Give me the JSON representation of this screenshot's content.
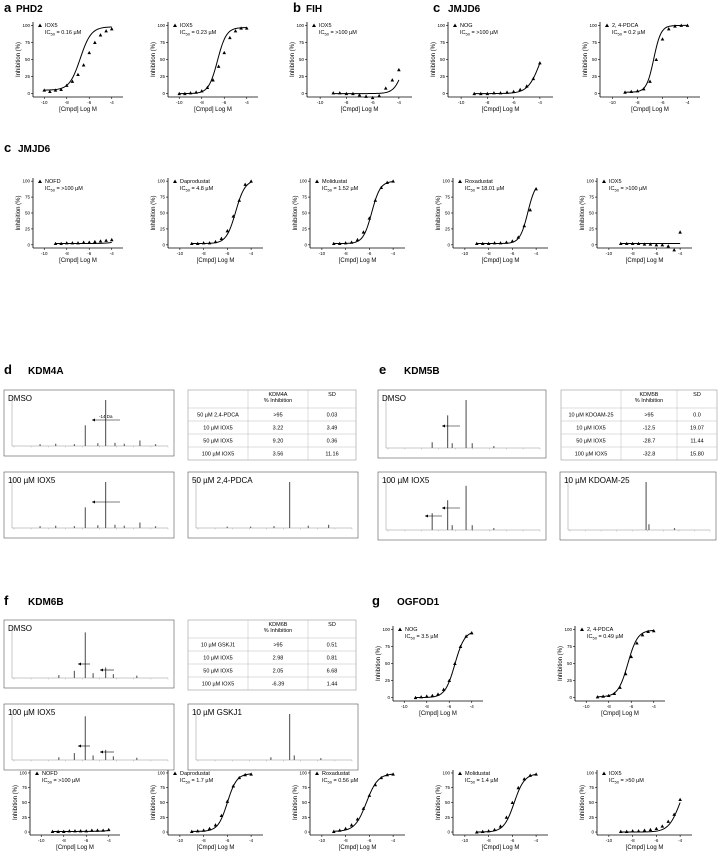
{
  "panel_labels": {
    "a": "a",
    "b": "b",
    "c1": "c",
    "c2": "c",
    "d": "d",
    "e": "e",
    "f": "f",
    "g": "g"
  },
  "titles": {
    "a": "PHD2",
    "b": "FIH",
    "c1": "JMJD6",
    "c2": "JMJD6",
    "d": "KDM4A",
    "e": "KDM5B",
    "f": "KDM6B",
    "g": "OGFOD1"
  },
  "axis_text": {
    "xlabel": "[Cmpd] Log M",
    "ylabel": "Inhibition (%)"
  },
  "chart_data": [
    {
      "id": "a1",
      "type": "scatter",
      "legend_label": "IOX5",
      "ic50": "IC50 = 0.16 µM",
      "xlim": [
        -11,
        -3
      ],
      "ylim": [
        -5,
        105
      ],
      "x": [
        -10,
        -9.5,
        -9,
        -8.5,
        -8,
        -7.5,
        -7,
        -6.5,
        -6,
        -5.5,
        -5,
        -4.5,
        -4
      ],
      "y": [
        5,
        3,
        5,
        6,
        12,
        18,
        28,
        42,
        60,
        75,
        86,
        92,
        95
      ],
      "fit": {
        "bottom": 5,
        "top": 98,
        "logec50": -6.8,
        "hill": 0.9
      }
    },
    {
      "id": "a2",
      "type": "scatter",
      "legend_label": "IOX5",
      "ic50": "IC50 = 0.23 µM",
      "xlim": [
        -11,
        -3
      ],
      "ylim": [
        -5,
        105
      ],
      "x": [
        -10,
        -9.5,
        -9,
        -8.5,
        -8,
        -7.5,
        -7,
        -6.5,
        -6,
        -5.5,
        -5,
        -4.5,
        -4
      ],
      "y": [
        0,
        0,
        1,
        2,
        4,
        9,
        20,
        40,
        60,
        82,
        92,
        96,
        96
      ],
      "fit": {
        "bottom": 0,
        "top": 97,
        "logec50": -6.6,
        "hill": 1.1
      }
    },
    {
      "id": "b1",
      "type": "scatter",
      "legend_label": "IOX5",
      "ic50": "IC50 = >100 µM",
      "xlim": [
        -11,
        -3
      ],
      "ylim": [
        -5,
        105
      ],
      "x": [
        -9,
        -8.5,
        -8,
        -7.5,
        -7,
        -6.5,
        -6,
        -5.5,
        -5,
        -4.5,
        -4
      ],
      "y": [
        1,
        1,
        0,
        0,
        -2,
        -4,
        -6,
        -3,
        8,
        20,
        35
      ],
      "fit": {
        "bottom": 0,
        "top": 100,
        "logec50": -3.5,
        "hill": 1.2
      }
    },
    {
      "id": "c1",
      "type": "scatter",
      "legend_label": "NOG",
      "ic50": "IC50 = >100 µM",
      "xlim": [
        -11,
        -3
      ],
      "ylim": [
        -5,
        105
      ],
      "x": [
        -9,
        -8.5,
        -8,
        -7.5,
        -7,
        -6.5,
        -6,
        -5.5,
        -5,
        -4.5,
        -4
      ],
      "y": [
        0,
        0,
        0,
        1,
        1,
        2,
        3,
        6,
        11,
        22,
        45
      ],
      "fit": {
        "bottom": 0,
        "top": 100,
        "logec50": -3.9,
        "hill": 0.9
      }
    },
    {
      "id": "c2",
      "type": "scatter",
      "legend_label": "2, 4-PDCA",
      "ic50": "IC50 = 0.2 µM",
      "xlim": [
        -11,
        -3
      ],
      "ylim": [
        -5,
        105
      ],
      "x": [
        -9,
        -8.5,
        -8,
        -7.5,
        -7,
        -6.5,
        -6,
        -5.5,
        -5,
        -4.5,
        -4
      ],
      "y": [
        2,
        3,
        4,
        7,
        18,
        50,
        80,
        95,
        99,
        100,
        100
      ],
      "fit": {
        "bottom": 2,
        "top": 100,
        "logec50": -6.7,
        "hill": 1.5
      }
    },
    {
      "id": "c3",
      "type": "scatter",
      "legend_label": "NOFD",
      "ic50": "IC50 = >100 µM",
      "xlim": [
        -11,
        -3
      ],
      "ylim": [
        -5,
        105
      ],
      "x": [
        -9,
        -8.5,
        -8,
        -7.5,
        -7,
        -6.5,
        -6,
        -5.5,
        -5,
        -4.5,
        -4
      ],
      "y": [
        2,
        2,
        3,
        3,
        3,
        4,
        4,
        5,
        6,
        7,
        8
      ],
      "fit": {
        "bottom": 2,
        "top": 100,
        "logec50": -1.5,
        "hill": 0.7
      }
    },
    {
      "id": "c4",
      "type": "scatter",
      "legend_label": "Daprodustat",
      "ic50": "IC50 = 4.8 µM",
      "xlim": [
        -11,
        -3
      ],
      "ylim": [
        -5,
        105
      ],
      "x": [
        -9,
        -8.5,
        -8,
        -7.5,
        -7,
        -6.5,
        -6,
        -5.5,
        -5,
        -4.5,
        -4
      ],
      "y": [
        2,
        2,
        3,
        3,
        5,
        10,
        22,
        45,
        70,
        95,
        100
      ],
      "fit": {
        "bottom": 2,
        "top": 102,
        "logec50": -5.3,
        "hill": 1.1
      }
    },
    {
      "id": "c5",
      "type": "scatter",
      "legend_label": "Molidustat",
      "ic50": "IC50 = 1.52 µM",
      "xlim": [
        -11,
        -3
      ],
      "ylim": [
        -5,
        105
      ],
      "x": [
        -9,
        -8.5,
        -8,
        -7.5,
        -7,
        -6.5,
        -6,
        -5.5,
        -5,
        -4.5,
        -4
      ],
      "y": [
        2,
        2,
        3,
        4,
        8,
        20,
        42,
        70,
        90,
        98,
        100
      ],
      "fit": {
        "bottom": 2,
        "top": 100,
        "logec50": -5.8,
        "hill": 1.2
      }
    },
    {
      "id": "c6",
      "type": "scatter",
      "legend_label": "Roxadustat",
      "ic50": "IC50 = 18.01 µM",
      "xlim": [
        -11,
        -3
      ],
      "ylim": [
        -5,
        105
      ],
      "x": [
        -9,
        -8.5,
        -8,
        -7.5,
        -7,
        -6.5,
        -6,
        -5.5,
        -5,
        -4.5,
        -4
      ],
      "y": [
        2,
        2,
        2,
        3,
        3,
        4,
        6,
        12,
        30,
        55,
        88
      ],
      "fit": {
        "bottom": 2,
        "top": 100,
        "logec50": -4.7,
        "hill": 1.3
      }
    },
    {
      "id": "c7",
      "type": "scatter",
      "legend_label": "IOX5",
      "ic50": "IC50 = >100 µM",
      "xlim": [
        -11,
        -3
      ],
      "ylim": [
        -5,
        105
      ],
      "x": [
        -9,
        -8.5,
        -8,
        -7.5,
        -7,
        -6.5,
        -6,
        -5.5,
        -5,
        -4.5,
        -4
      ],
      "y": [
        2,
        2,
        2,
        2,
        1,
        1,
        0,
        0,
        -2,
        -8,
        20
      ],
      "fit": {
        "bottom": 2,
        "top": 100,
        "logec50": -2.0,
        "hill": 1.5
      }
    },
    {
      "id": "g1",
      "type": "scatter",
      "legend_label": "NOG",
      "ic50": "IC50 = 3.5 µM",
      "xlim": [
        -11,
        -3
      ],
      "ylim": [
        -5,
        105
      ],
      "x": [
        -9,
        -8.5,
        -8,
        -7.5,
        -7,
        -6.5,
        -6,
        -5.5,
        -5,
        -4.5,
        -4
      ],
      "y": [
        0,
        1,
        2,
        3,
        5,
        12,
        25,
        50,
        75,
        90,
        95
      ],
      "fit": {
        "bottom": 0,
        "top": 98,
        "logec50": -5.5,
        "hill": 1.0
      }
    },
    {
      "id": "g2",
      "type": "scatter",
      "legend_label": "2, 4-PDCA",
      "ic50": "IC50 = 0.49 µM",
      "xlim": [
        -11,
        -3
      ],
      "ylim": [
        -5,
        105
      ],
      "x": [
        -9,
        -8.5,
        -8,
        -7.5,
        -7,
        -6.5,
        -6,
        -5.5,
        -5,
        -4.5,
        -4
      ],
      "y": [
        1,
        2,
        3,
        6,
        15,
        35,
        60,
        80,
        92,
        97,
        98
      ],
      "fit": {
        "bottom": 1,
        "top": 99,
        "logec50": -6.3,
        "hill": 1.0
      }
    },
    {
      "id": "g3",
      "type": "scatter",
      "legend_label": "NOFD",
      "ic50": "IC50 = >100 µM",
      "xlim": [
        -11,
        -3
      ],
      "ylim": [
        -5,
        105
      ],
      "x": [
        -9,
        -8.5,
        -8,
        -7.5,
        -7,
        -6.5,
        -6,
        -5.5,
        -5,
        -4.5,
        -4
      ],
      "y": [
        1,
        1,
        1,
        2,
        2,
        2,
        2,
        3,
        3,
        3,
        4
      ],
      "fit": {
        "bottom": 1,
        "top": 100,
        "logec50": -1.0,
        "hill": 0.6
      }
    },
    {
      "id": "g4",
      "type": "scatter",
      "legend_label": "Daprodustat",
      "ic50": "IC50 = 1.7 µM",
      "xlim": [
        -11,
        -3
      ],
      "ylim": [
        -5,
        105
      ],
      "x": [
        -9,
        -8.5,
        -8,
        -7.5,
        -7,
        -6.5,
        -6,
        -5.5,
        -5,
        -4.5,
        -4
      ],
      "y": [
        1,
        2,
        3,
        6,
        12,
        28,
        52,
        78,
        92,
        97,
        98
      ],
      "fit": {
        "bottom": 1,
        "top": 99,
        "logec50": -6.0,
        "hill": 1.1
      }
    },
    {
      "id": "g5",
      "type": "scatter",
      "legend_label": "Roxadustat",
      "ic50": "IC50 = 0.56 µM",
      "xlim": [
        -11,
        -3
      ],
      "ylim": [
        -5,
        105
      ],
      "x": [
        -9,
        -8.5,
        -8,
        -7.5,
        -7,
        -6.5,
        -6,
        -5.5,
        -5,
        -4.5,
        -4
      ],
      "y": [
        1,
        3,
        6,
        12,
        22,
        40,
        62,
        80,
        92,
        97,
        98
      ],
      "fit": {
        "bottom": 1,
        "top": 99,
        "logec50": -6.25,
        "hill": 0.9
      }
    },
    {
      "id": "g6",
      "type": "scatter",
      "legend_label": "Molidustat",
      "ic50": "IC50 = 1.4 µM",
      "xlim": [
        -11,
        -3
      ],
      "ylim": [
        -5,
        105
      ],
      "x": [
        -9,
        -8.5,
        -8,
        -7.5,
        -7,
        -6.5,
        -6,
        -5.5,
        -5,
        -4.5,
        -4
      ],
      "y": [
        0,
        1,
        2,
        4,
        10,
        25,
        50,
        75,
        90,
        96,
        98
      ],
      "fit": {
        "bottom": 0,
        "top": 99,
        "logec50": -5.85,
        "hill": 1.0
      }
    },
    {
      "id": "g7",
      "type": "scatter",
      "legend_label": "IOX5",
      "ic50": "IC50 = >50 µM",
      "xlim": [
        -11,
        -3
      ],
      "ylim": [
        -5,
        105
      ],
      "x": [
        -9,
        -8.5,
        -8,
        -7.5,
        -7,
        -6.5,
        -6,
        -5.5,
        -5,
        -4.5,
        -4
      ],
      "y": [
        1,
        1,
        2,
        2,
        3,
        4,
        6,
        10,
        18,
        30,
        55
      ],
      "fit": {
        "bottom": 0,
        "top": 100,
        "logec50": -4.0,
        "hill": 0.9
      }
    }
  ],
  "ms_panels": {
    "d_dmso": "DMSO",
    "d_iox5": "100 µM IOX5",
    "d_pdca": "50 µM 2,4-PDCA",
    "d_shift": "-14 Da",
    "e_dmso": "DMSO",
    "e_iox5": "100 µM IOX5",
    "e_kdoam": "10 µM KDOAM-25",
    "f_dmso": "DMSO",
    "f_iox5": "100 µM IOX5",
    "f_gskj1": "10 µM GSKJ1"
  },
  "tables": {
    "d": {
      "header": [
        "",
        "KDM4A\n% Inhibition",
        "SD"
      ],
      "rows": [
        [
          "50 µM 2,4-PDCA",
          ">95",
          "0.03"
        ],
        [
          "10 µM IOX5",
          "3.22",
          "3.49"
        ],
        [
          "50 µM IOX5",
          "9.20",
          "0.36"
        ],
        [
          "100 µM IOX5",
          "3.56",
          "11.16"
        ]
      ]
    },
    "e": {
      "header": [
        "",
        "KDM5B\n% Inhibition",
        "SD"
      ],
      "rows": [
        [
          "10 µM KDOAM-25",
          ">95",
          "0.0"
        ],
        [
          "10 µM IOX5",
          "-12.5",
          "19.07"
        ],
        [
          "50 µM IOX5",
          "-28.7",
          "11.44"
        ],
        [
          "100 µM IOX5",
          "-32.8",
          "15.80"
        ]
      ]
    },
    "f": {
      "header": [
        "",
        "KDM6B\n% Inhibition",
        "SD"
      ],
      "rows": [
        [
          "10 µM GSKJ1",
          ">95",
          "0.51"
        ],
        [
          "10 µM IOX5",
          "2.98",
          "0.81"
        ],
        [
          "50 µM IOX5",
          "2.05",
          "6.68"
        ],
        [
          "100 µM IOX5",
          "-6.39",
          "1.44"
        ]
      ]
    }
  }
}
